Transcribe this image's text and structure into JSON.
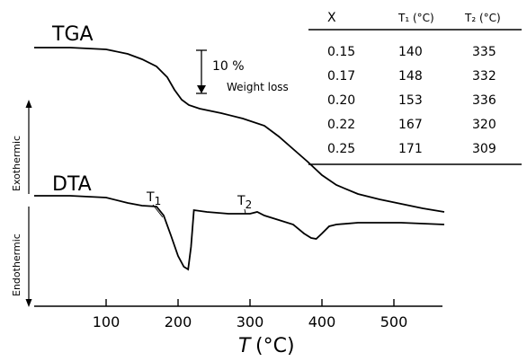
{
  "chart_data": {
    "type": "line",
    "xlabel_symbol": "T",
    "xlabel_unit": "(°C)",
    "xlim": [
      0,
      570
    ],
    "x_ticks": [
      100,
      200,
      300,
      400,
      500
    ],
    "grid": false,
    "series": [
      {
        "name": "TGA",
        "x": [
          0,
          50,
          100,
          130,
          150,
          170,
          185,
          195,
          205,
          215,
          230,
          260,
          290,
          320,
          340,
          360,
          380,
          400,
          420,
          450,
          480,
          510,
          540,
          570
        ],
        "y": [
          53,
          53,
          55,
          60,
          66,
          74,
          86,
          100,
          111,
          117,
          121,
          126,
          132,
          140,
          152,
          166,
          180,
          195,
          206,
          216,
          222,
          227,
          232,
          236
        ]
      },
      {
        "name": "DTA",
        "x": [
          0,
          50,
          100,
          130,
          150,
          170,
          180,
          190,
          200,
          208,
          214,
          218,
          222,
          240,
          270,
          300,
          310,
          320,
          340,
          360,
          375,
          385,
          392,
          400,
          410,
          420,
          450,
          480,
          510,
          540,
          570
        ],
        "y": [
          218,
          218,
          220,
          226,
          229,
          230,
          240,
          262,
          285,
          297,
          300,
          275,
          234,
          236,
          238,
          238,
          236,
          240,
          245,
          250,
          260,
          265,
          266,
          260,
          252,
          250,
          248,
          248,
          248,
          249,
          250
        ]
      }
    ],
    "annotations": {
      "tga": "TGA",
      "dta": "DTA",
      "t1": "T",
      "t1_sub": "1",
      "t2": "T",
      "t2_sub": "2",
      "scale_value": "10 %",
      "scale_text": "Weight loss",
      "exothermic": "Exothermic",
      "endothermic": "Endothermic"
    },
    "table": {
      "headers": [
        "X",
        "T₁ (°C)",
        "T₂ (°C)"
      ],
      "rows": [
        [
          "0.15",
          "140",
          "335"
        ],
        [
          "0.17",
          "148",
          "332"
        ],
        [
          "0.20",
          "153",
          "336"
        ],
        [
          "0.22",
          "167",
          "320"
        ],
        [
          "0.25",
          "171",
          "309"
        ]
      ]
    }
  }
}
